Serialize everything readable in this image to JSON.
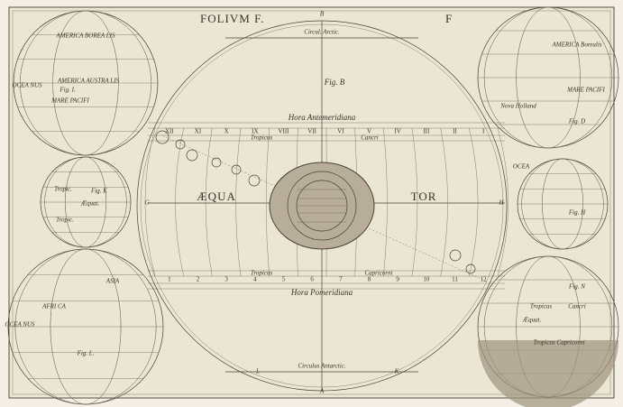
{
  "plate": {
    "title": "FOLIVM F.",
    "letter": "F"
  },
  "central_figure": {
    "label": "Fig. B",
    "top_circle": "Circul. Arctic.",
    "bottom_circle": "Circulus Antarctic.",
    "upper_band": "Hora Antemeridiana",
    "lower_band": "Hora Pomeridiana",
    "tropic_upper": "Tropicus",
    "cancer": "Cancri",
    "tropic_lower": "Tropicus",
    "capricorn": "Capricorni",
    "equator_left": "ÆQUA",
    "equator_right": "TOR",
    "hours_morning": [
      "XII",
      "XI",
      "X",
      "IX",
      "VIII",
      "VII",
      "VI",
      "V",
      "IV",
      "III",
      "II",
      "I"
    ],
    "hours_afternoon": [
      "1",
      "2",
      "3",
      "4",
      "5",
      "6",
      "7",
      "8",
      "9",
      "10",
      "11",
      "12"
    ],
    "letters": [
      "B",
      "A",
      "K",
      "L",
      "G",
      "H"
    ]
  },
  "small_figures": [
    {
      "label": "Fig. I.",
      "texts": [
        "AMERICA BOREA LIS",
        "AMERICA AUSTRA LIS",
        "MARE PACIFI",
        "OCEA NUS"
      ]
    },
    {
      "label": "Fig. K",
      "texts": [
        "Tropic.",
        "Æquat.",
        "Tropic."
      ]
    },
    {
      "label": "Fig. L.",
      "texts": [
        "ASIA",
        "AFRI CA",
        "OCEA NUS"
      ]
    },
    {
      "label": "Fig. D",
      "texts": [
        "AMERICA Borealis",
        "MARE PACIFI",
        "Nova Holland"
      ]
    },
    {
      "label": "Fig. H",
      "texts": [
        "OCEA"
      ]
    },
    {
      "label": "Fig. N",
      "texts": [
        "Tropicus",
        "Cancri",
        "Æquat.",
        "Tropicus Capricorni"
      ]
    }
  ]
}
